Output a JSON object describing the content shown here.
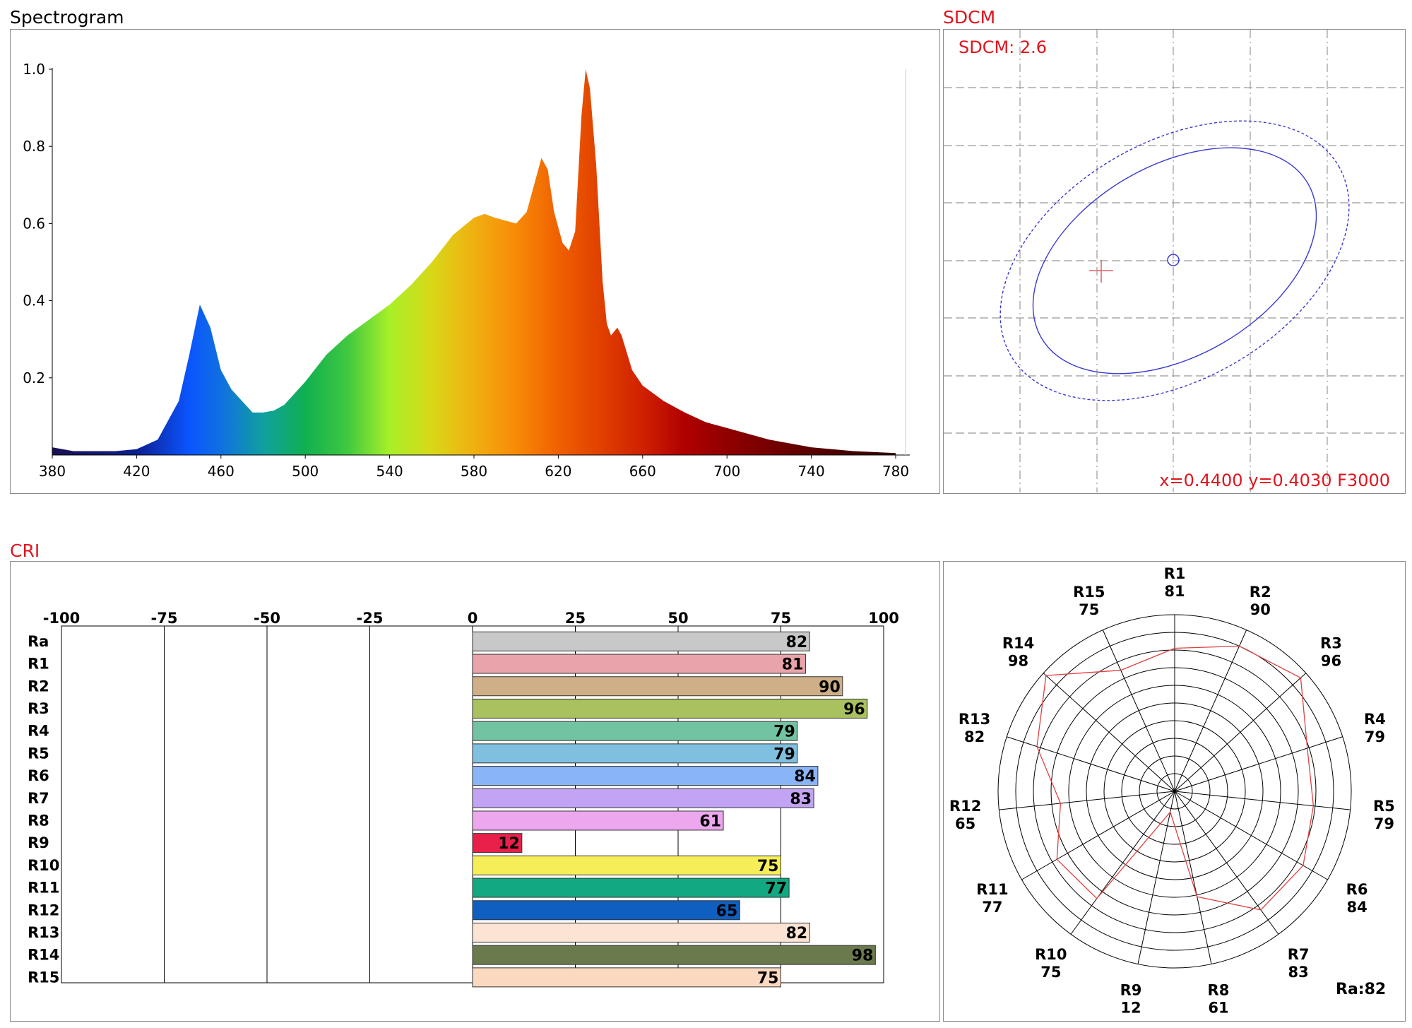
{
  "titles": {
    "spectrogram": "Spectrogram",
    "sdcm": "SDCM",
    "cri": "CRI"
  },
  "colors": {
    "title_black": "#000000",
    "title_red": "#e0141e",
    "ellipse": "#3a3ad0",
    "cross": "#e06060",
    "polar_line": "#e04040"
  },
  "sdcm": {
    "label": "SDCM: 2.6",
    "coords": "x=0.4400 y=0.4030 F3000"
  },
  "chart_data": [
    {
      "type": "area",
      "title": "Spectrogram",
      "xlim": [
        380,
        780
      ],
      "ylim": [
        0,
        1.0
      ],
      "x_ticks": [
        "380",
        "420",
        "460",
        "500",
        "540",
        "580",
        "620",
        "660",
        "700",
        "740",
        "780"
      ],
      "y_ticks": [
        "0.2",
        "0.4",
        "0.6",
        "0.8",
        "1.0"
      ],
      "x": [
        380,
        390,
        400,
        410,
        420,
        430,
        440,
        445,
        450,
        455,
        460,
        465,
        470,
        475,
        480,
        485,
        490,
        500,
        510,
        520,
        530,
        540,
        550,
        560,
        570,
        580,
        585,
        590,
        600,
        605,
        608,
        612,
        615,
        618,
        622,
        625,
        628,
        631,
        633,
        635,
        638,
        641,
        643,
        645,
        648,
        650,
        655,
        660,
        670,
        680,
        690,
        700,
        720,
        740,
        760,
        780
      ],
      "y": [
        0.02,
        0.01,
        0.01,
        0.01,
        0.015,
        0.04,
        0.14,
        0.26,
        0.39,
        0.33,
        0.22,
        0.17,
        0.14,
        0.11,
        0.11,
        0.115,
        0.13,
        0.19,
        0.26,
        0.31,
        0.35,
        0.39,
        0.44,
        0.5,
        0.57,
        0.615,
        0.625,
        0.615,
        0.6,
        0.63,
        0.69,
        0.77,
        0.74,
        0.63,
        0.55,
        0.53,
        0.58,
        0.88,
        1.0,
        0.95,
        0.75,
        0.45,
        0.34,
        0.31,
        0.33,
        0.31,
        0.22,
        0.18,
        0.14,
        0.11,
        0.085,
        0.07,
        0.04,
        0.02,
        0.01,
        0.005
      ]
    },
    {
      "type": "bar",
      "title": "CRI",
      "orientation": "horizontal",
      "xlim": [
        -100,
        100
      ],
      "x_ticks": [
        "-100",
        "-75",
        "-50",
        "-25",
        "0",
        "25",
        "50",
        "75",
        "100"
      ],
      "categories": [
        "Ra",
        "R1",
        "R2",
        "R3",
        "R4",
        "R5",
        "R6",
        "R7",
        "R8",
        "R9",
        "R10",
        "R11",
        "R12",
        "R13",
        "R14",
        "R15"
      ],
      "values": [
        82,
        81,
        90,
        96,
        79,
        79,
        84,
        83,
        61,
        12,
        75,
        77,
        65,
        82,
        98,
        75
      ],
      "colors": [
        "#c8c8c8",
        "#e8a4aa",
        "#cfaf87",
        "#a9c15e",
        "#72c3a1",
        "#7fc0e0",
        "#8ab4f8",
        "#c3a3f3",
        "#eca7ef",
        "#e8204a",
        "#f5ee58",
        "#12a882",
        "#0f5fc0",
        "#fbe4d4",
        "#6b7a4d",
        "#fbd8c0"
      ]
    },
    {
      "type": "polar",
      "title": "",
      "categories": [
        "R1",
        "R2",
        "R3",
        "R4",
        "R5",
        "R6",
        "R7",
        "R8",
        "R9",
        "R10",
        "R11",
        "R12",
        "R13",
        "R14",
        "R15"
      ],
      "values": [
        81,
        90,
        96,
        79,
        79,
        84,
        83,
        61,
        12,
        75,
        77,
        65,
        82,
        98,
        75
      ],
      "rlim": [
        0,
        100
      ],
      "ra_label": "Ra:82"
    }
  ]
}
